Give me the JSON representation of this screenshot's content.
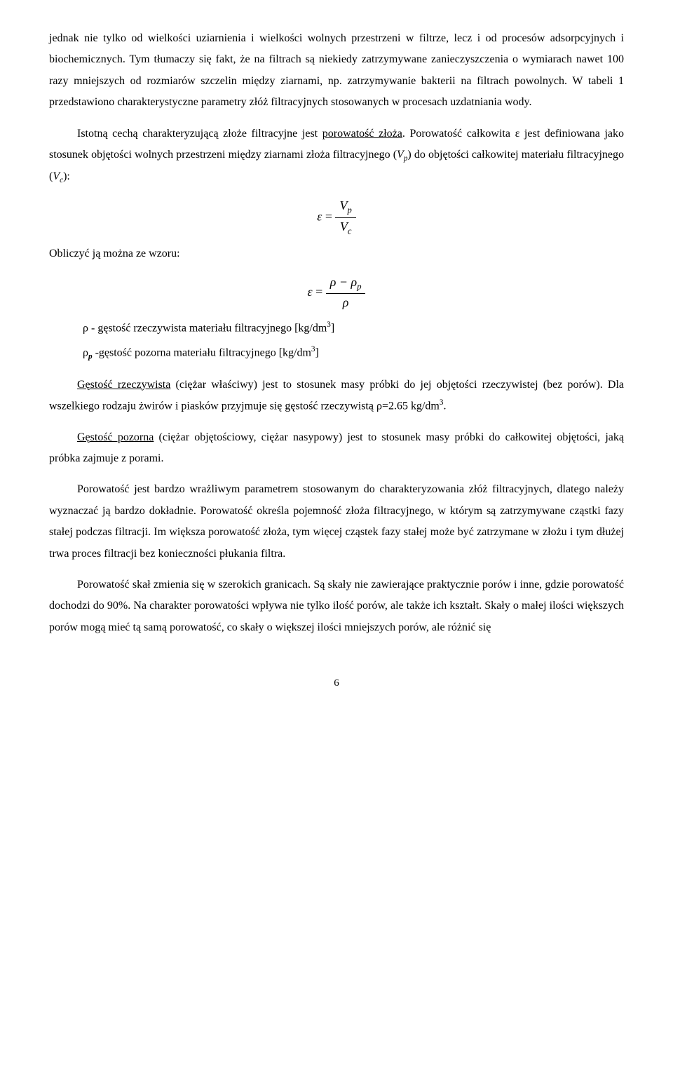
{
  "p1": "jednak nie tylko od wielkości uziarnienia i wielkości wolnych przestrzeni w filtrze, lecz i od procesów adsorpcyjnych i biochemicznych. Tym tłumaczy się fakt, że na filtrach są niekiedy zatrzymywane zanieczyszczenia o wymiarach nawet 100 razy mniejszych od rozmiarów szczelin między ziarnami, np. zatrzymywanie bakterii na filtrach powolnych. W tabeli 1 przedstawiono charakterystyczne parametry złóż filtracyjnych stosowanych w procesach uzdatniania wody.",
  "p2a": "Istotną cechą charakteryzującą złoże filtracyjne jest ",
  "p2u": "porowatość złoża",
  "p2b": ". Porowatość całkowita ε jest definiowana jako stosunek objętości wolnych przestrzeni między ziarnami złoża filtracyjnego (",
  "p2c": ") do objętości całkowitej materiału filtracyjnego (",
  "p2d": "):",
  "calc": "Obliczyć ją można ze wzoru:",
  "def1a": "ρ - gęstość rzeczywista materiału filtracyjnego [kg/dm",
  "def1b": "]",
  "def2a": "ρ",
  "def2b": " -gęstość pozorna materiału filtracyjnego [kg/dm",
  "def2c": "]",
  "p3au": "Gęstość rzeczywista",
  "p3a": " (ciężar właściwy) jest to stosunek masy próbki do jej objętości rzeczywistej (bez porów). Dla wszelkiego rodzaju żwirów i piasków przyjmuje się gęstość rzeczywistą ρ=2.65 kg/dm",
  "p3b": ".",
  "p4u": "Gęstość pozorna",
  "p4": " (ciężar objętościowy, ciężar nasypowy) jest to stosunek masy próbki do całkowitej objętości, jaką próbka zajmuje z porami.",
  "p5": "Porowatość jest bardzo wrażliwym parametrem stosowanym do charakteryzowania złóż filtracyjnych, dlatego należy wyznaczać ją bardzo dokładnie. Porowatość określa pojemność złoża filtracyjnego, w którym są zatrzymywane cząstki fazy stałej podczas filtracji. Im większa porowatość złoża, tym więcej cząstek fazy stałej może być zatrzymane w złożu i tym dłużej trwa proces filtracji bez konieczności płukania filtra.",
  "p6": "Porowatość skał zmienia się w szerokich granicach. Są skały nie zawierające praktycznie porów i inne, gdzie porowatość dochodzi do 90%. Na charakter porowatości wpływa nie tylko ilość porów, ale także ich kształt. Skały o małej ilości większych porów mogą mieć tą samą porowatość, co skały o większej ilości mniejszych porów, ale różnić się",
  "sym": {
    "eps": "ε",
    "Vp": "V",
    "Vc": "V",
    "rho": "ρ",
    "p": "p",
    "c": "c",
    "three": "3",
    "psub": "p"
  },
  "pagenum": "6"
}
